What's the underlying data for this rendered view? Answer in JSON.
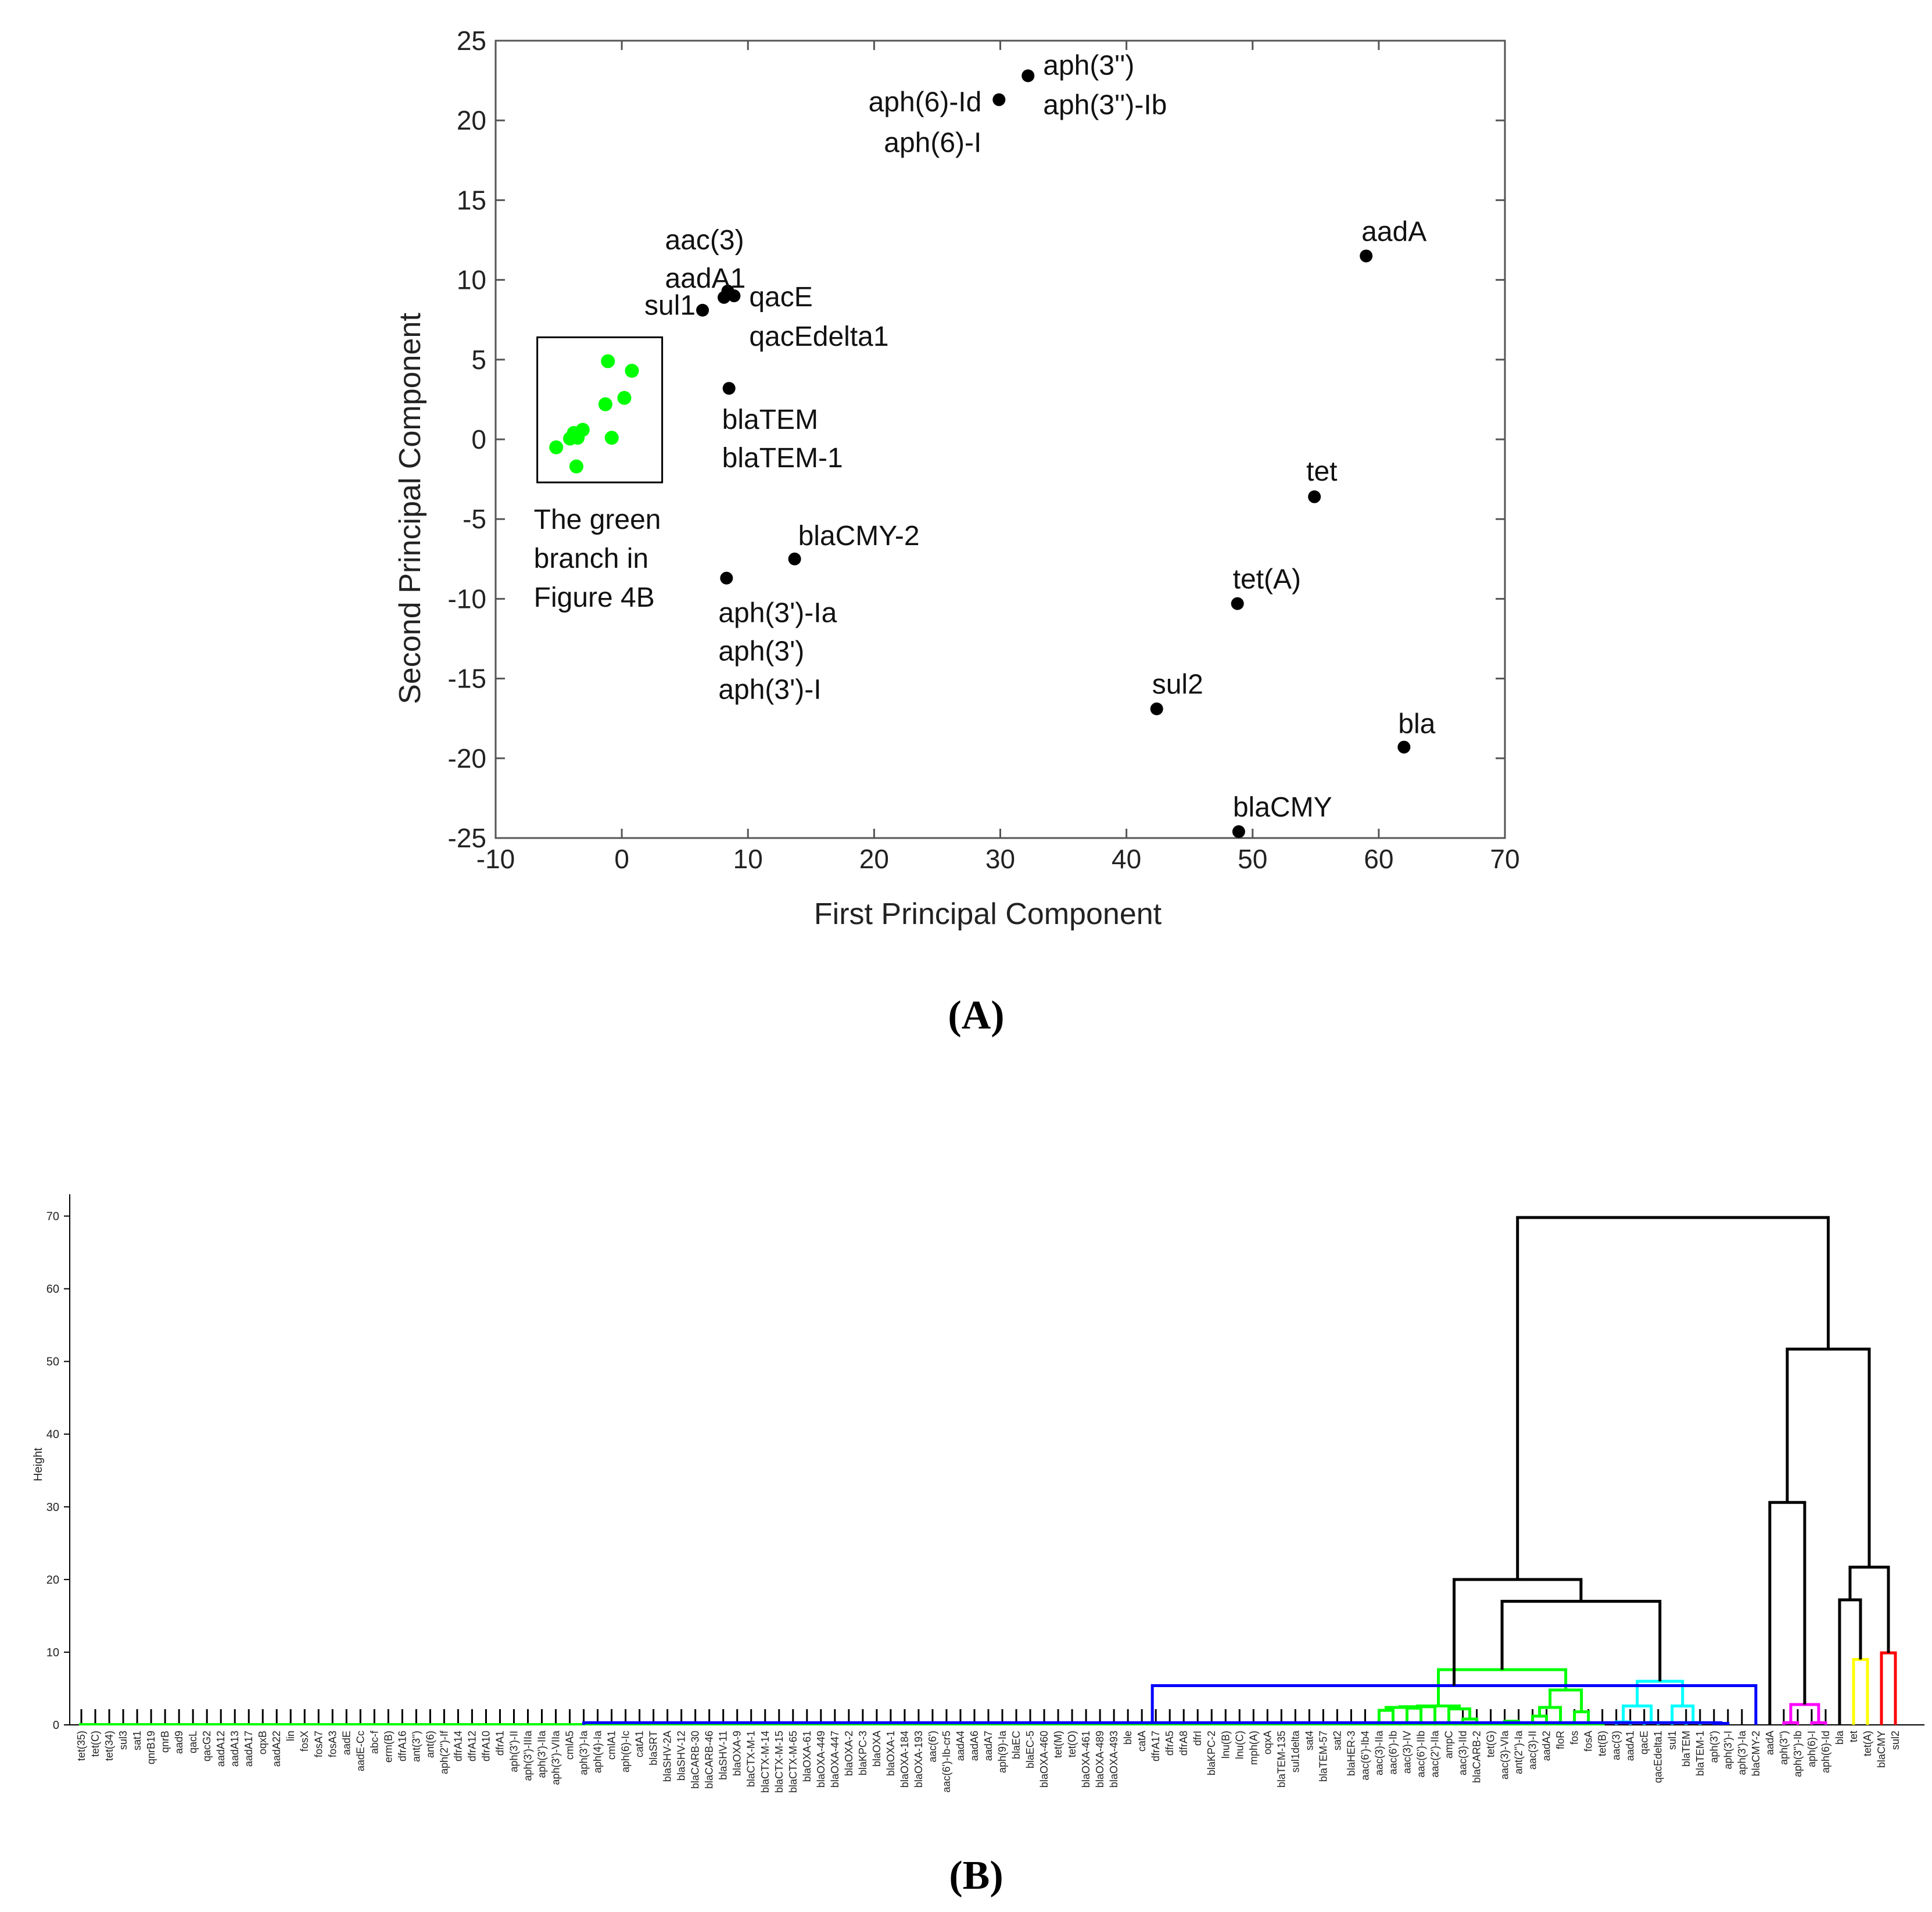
{
  "chart_data": [
    {
      "type": "scatter",
      "xlabel": "First Principal Component",
      "ylabel": "Second Principal Component",
      "xlim": [
        -10,
        70
      ],
      "ylim": [
        -25,
        25
      ],
      "xticks": [
        "-10",
        "0",
        "10",
        "20",
        "30",
        "40",
        "50",
        "60",
        "70"
      ],
      "yticks": [
        "25",
        "20",
        "15",
        "10",
        "5",
        "0",
        "-5",
        "-10",
        "-15",
        "-20",
        "-25"
      ],
      "points": [
        {
          "x": 32.2,
          "y": 22.8,
          "color": "#000000",
          "labels": [
            "aph(3'')",
            "aph(3'')-Ib"
          ]
        },
        {
          "x": 29.9,
          "y": 21.3,
          "color": "#000000",
          "labels": [
            "aph(6)-Id",
            "aph(6)-I"
          ]
        },
        {
          "x": 59.0,
          "y": 11.5,
          "color": "#000000",
          "labels": [
            "aadA"
          ]
        },
        {
          "x": 8.4,
          "y": 9.3,
          "color": "#000000",
          "labels": [
            "aac(3)",
            "aadA1"
          ]
        },
        {
          "x": 8.9,
          "y": 9.0,
          "color": "#000000",
          "labels": [
            "qacE",
            "qacEdelta1"
          ]
        },
        {
          "x": 8.1,
          "y": 8.9,
          "color": "#000000",
          "labels": []
        },
        {
          "x": 6.4,
          "y": 8.1,
          "color": "#000000",
          "labels": [
            "sul1"
          ]
        },
        {
          "x": 8.5,
          "y": 3.2,
          "color": "#000000",
          "labels": [
            "blaTEM",
            "blaTEM-1"
          ]
        },
        {
          "x": 54.9,
          "y": -3.6,
          "color": "#000000",
          "labels": [
            "tet"
          ]
        },
        {
          "x": 13.7,
          "y": -7.5,
          "color": "#000000",
          "labels": [
            "blaCMY-2"
          ]
        },
        {
          "x": 8.3,
          "y": -8.7,
          "color": "#000000",
          "labels": [
            "aph(3')-Ia",
            "aph(3')",
            "aph(3')-I"
          ]
        },
        {
          "x": 48.8,
          "y": -10.3,
          "color": "#000000",
          "labels": [
            "tet(A)"
          ]
        },
        {
          "x": 42.4,
          "y": -16.9,
          "color": "#000000",
          "labels": [
            "sul2"
          ]
        },
        {
          "x": 62.0,
          "y": -19.3,
          "color": "#000000",
          "labels": [
            "bla"
          ]
        },
        {
          "x": 48.9,
          "y": -24.6,
          "color": "#000000",
          "labels": [
            "blaCMY"
          ]
        },
        {
          "x": -1.1,
          "y": 4.9,
          "color": "#00ff00",
          "labels": []
        },
        {
          "x": 0.8,
          "y": 4.3,
          "color": "#00ff00",
          "labels": []
        },
        {
          "x": 0.2,
          "y": 2.6,
          "color": "#00ff00",
          "labels": []
        },
        {
          "x": -1.3,
          "y": 2.2,
          "color": "#00ff00",
          "labels": []
        },
        {
          "x": -3.1,
          "y": 0.6,
          "color": "#00ff00",
          "labels": []
        },
        {
          "x": -3.8,
          "y": 0.4,
          "color": "#00ff00",
          "labels": []
        },
        {
          "x": -3.5,
          "y": 0.1,
          "color": "#00ff00",
          "labels": []
        },
        {
          "x": -0.8,
          "y": 0.1,
          "color": "#00ff00",
          "labels": []
        },
        {
          "x": -4.1,
          "y": 0.05,
          "color": "#00ff00",
          "labels": []
        },
        {
          "x": -5.2,
          "y": -0.5,
          "color": "#00ff00",
          "labels": []
        },
        {
          "x": -3.6,
          "y": -1.7,
          "color": "#00ff00",
          "labels": []
        }
      ],
      "annotation": {
        "lines": [
          "The green",
          "branch in",
          "Figure 4B"
        ],
        "box_x": [
          -6.7,
          3.2
        ],
        "box_y": [
          -2.7,
          6.4
        ]
      },
      "panel_label": "(A)"
    },
    {
      "type": "dendrogram",
      "ylabel": "Height",
      "ylim": [
        0,
        73
      ],
      "yticks": [
        "0",
        "10",
        "20",
        "30",
        "40",
        "50",
        "60",
        "70"
      ],
      "leaves": [
        "tet(35)",
        "tet(C)",
        "tet(34)",
        "sul3",
        "sat1",
        "qnrB19",
        "qnrB",
        "aad9",
        "qacL",
        "qacG2",
        "aadA12",
        "aadA13",
        "aadA17",
        "oqxB",
        "aadA22",
        "lin",
        "fosX",
        "fosA7",
        "fosA3",
        "aadE",
        "aadE-Cc",
        "abc-f",
        "erm(B)",
        "dfrA16",
        "ant(3'')",
        "ant(6)",
        "aph(2'')-If",
        "dfrA14",
        "dfrA12",
        "dfrA10",
        "dfrA1",
        "aph(3')-II",
        "aph(3')-IIIa",
        "aph(3')-IIa",
        "aph(3')-VIIa",
        "cmlA5",
        "aph(3')-Ia",
        "aph(4)-Ia",
        "cmlA1",
        "aph(6)-Ic",
        "catA1",
        "blaSRT",
        "blaSHV-2A",
        "blaSHV-12",
        "blaCARB-30",
        "blaCARB-46",
        "blaSHV-11",
        "blaOXA-9",
        "blaCTX-M-1",
        "blaCTX-M-14",
        "blaCTX-M-15",
        "blaCTX-M-65",
        "blaOXA-61",
        "blaOXA-449",
        "blaOXA-447",
        "blaOXA-2",
        "blaKPC-3",
        "blaOXA",
        "blaOXA-1",
        "blaOXA-184",
        "blaOXA-193",
        "aac(6')",
        "aac(6')-Ib-cr5",
        "aadA4",
        "aadA6",
        "aadA7",
        "aph(9)-Ia",
        "blaEC",
        "blaEC-5",
        "blaOXA-460",
        "tet(M)",
        "tet(O)",
        "blaOXA-461",
        "blaOXA-489",
        "blaOXA-493",
        "ble",
        "catA",
        "dfrA17",
        "dfrA5",
        "dfrA8",
        "dfrI",
        "blaKPC-2",
        "lnu(B)",
        "lnu(C)",
        "mph(A)",
        "oqxA",
        "blaTEM-135",
        "sul1delta",
        "sat4",
        "blaTEM-57",
        "sat2",
        "blaHER-3",
        "aac(6')-Ib4",
        "aac(3)-IIa",
        "aac(6')-Ib",
        "aac(3)-IV",
        "aac(6')-IIb",
        "aac(2')-IIa",
        "ampC",
        "aac(3)-IId",
        "blaCARB-2",
        "tet(G)",
        "aac(3)-VIa",
        "ant(2'')-Ia",
        "aac(3)-II",
        "aadA2",
        "floR",
        "fos",
        "fosA",
        "tet(B)",
        "aac(3)",
        "aadA1",
        "qacE",
        "qacEdelta1",
        "sul1",
        "blaTEM",
        "blaTEM-1",
        "aph(3')",
        "aph(3')-I",
        "aph(3')-Ia",
        "blaCMY-2",
        "aadA",
        "aph(3'')",
        "aph(3'')-Ib",
        "aph(6)-I",
        "aph(6)-Id",
        "bla",
        "tet",
        "tet(A)",
        "blaCMY",
        "sul2"
      ],
      "branch_colors": {
        "green": "#00ff00",
        "cyan": "#00ffff",
        "blue": "#0000ff",
        "magenta": "#ff00ff",
        "yellow": "#ffff00",
        "red": "#ff0000",
        "black": "#000000"
      },
      "merges": [
        {
          "left": "aac(3)-IIa",
          "right": "aac(6')-Ib",
          "height": 2.0,
          "color": "green"
        },
        {
          "left": "aac(3)-IV",
          "right": "aac(6')-IIb",
          "height": 2.3,
          "color": "green"
        },
        {
          "left": "aac(3)-IId",
          "right": "blaCARB-2",
          "height": 0.8,
          "color": "green"
        },
        {
          "left": "aac(3)-VIa",
          "right": "ant(2'')-Ia",
          "height": 0.5,
          "color": "green"
        },
        {
          "left": "fos",
          "right": "fosA",
          "height": 1.8,
          "color": "green"
        },
        {
          "left": "aac(3)",
          "right": "aadA1",
          "height": 0.4,
          "color": "cyan"
        },
        {
          "left": "sul1",
          "right": "blaTEM",
          "height": 6.0,
          "color": "cyan"
        },
        {
          "left": "aph(3')-I",
          "right": "aph(3')-Ia",
          "height": 5.4,
          "color": "blue"
        },
        {
          "left": "aph(3'')",
          "right": "aph(3'')-Ib",
          "height": 2.8,
          "color": "magenta"
        },
        {
          "left": "tet",
          "right": "tet(A)",
          "height": 9.0,
          "color": "yellow"
        },
        {
          "left": "blaCMY",
          "right": "sul2",
          "height": 9.9,
          "color": "red"
        },
        {
          "left": "green-cluster",
          "right": "cyan-cluster",
          "height": 17.0,
          "color": "black"
        },
        {
          "left": "green-cyan",
          "right": "blue-cluster",
          "height": 20.0,
          "color": "black"
        },
        {
          "left": "aadA",
          "right": "magenta-cluster",
          "height": 30.6,
          "color": "black"
        },
        {
          "left": "bla",
          "right": "yellow-cluster",
          "height": 17.2,
          "color": "black"
        },
        {
          "left": "bla-yellow",
          "right": "red-cluster",
          "height": 21.7,
          "color": "black"
        },
        {
          "left": "aadA-magenta",
          "right": "bla-yellow-red",
          "height": 51.7,
          "color": "black"
        },
        {
          "left": "root-left",
          "right": "root-right",
          "height": 69.8,
          "color": "black"
        }
      ],
      "panel_label": "(B)"
    }
  ]
}
